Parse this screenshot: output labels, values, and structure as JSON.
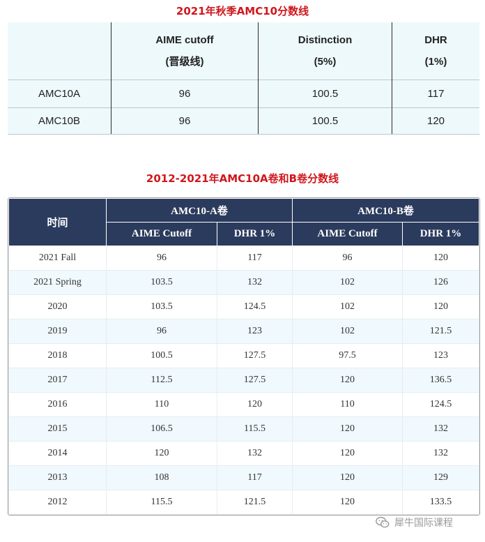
{
  "table1": {
    "title": "2021年秋季AMC10分数线",
    "corner_mark": "_",
    "headers": [
      {
        "line1": "AIME cutoff",
        "line2": "(晋级线)"
      },
      {
        "line1": "Distinction",
        "line2": "(5%)"
      },
      {
        "line1": "DHR",
        "line2": "(1%)"
      }
    ],
    "rows": [
      {
        "label": "AMC10A",
        "cutoff": "96",
        "distinction": "100.5",
        "dhr": "117"
      },
      {
        "label": "AMC10B",
        "cutoff": "96",
        "distinction": "100.5",
        "dhr": "120"
      }
    ]
  },
  "table2": {
    "title": "2012-2021年AMC10A卷和B卷分数线",
    "header_time": "时间",
    "group_a": "AMC10-A卷",
    "group_b": "AMC10-B卷",
    "sub_cutoff_a": "AIME Cutoff",
    "sub_dhr_a": "DHR 1%",
    "sub_cutoff_b": "AIME Cutoff",
    "sub_dhr_b": "DHR 1%",
    "rows": [
      {
        "time": "2021 Fall",
        "a_cutoff": "96",
        "a_dhr": "117",
        "b_cutoff": "96",
        "b_dhr": "120"
      },
      {
        "time": "2021 Spring",
        "a_cutoff": "103.5",
        "a_dhr": "132",
        "b_cutoff": "102",
        "b_dhr": "126"
      },
      {
        "time": "2020",
        "a_cutoff": "103.5",
        "a_dhr": "124.5",
        "b_cutoff": "102",
        "b_dhr": "120"
      },
      {
        "time": "2019",
        "a_cutoff": "96",
        "a_dhr": "123",
        "b_cutoff": "102",
        "b_dhr": "121.5"
      },
      {
        "time": "2018",
        "a_cutoff": "100.5",
        "a_dhr": "127.5",
        "b_cutoff": "97.5",
        "b_dhr": "123"
      },
      {
        "time": "2017",
        "a_cutoff": "112.5",
        "a_dhr": "127.5",
        "b_cutoff": "120",
        "b_dhr": "136.5"
      },
      {
        "time": "2016",
        "a_cutoff": "110",
        "a_dhr": "120",
        "b_cutoff": "110",
        "b_dhr": "124.5"
      },
      {
        "time": "2015",
        "a_cutoff": "106.5",
        "a_dhr": "115.5",
        "b_cutoff": "120",
        "b_dhr": "132"
      },
      {
        "time": "2014",
        "a_cutoff": "120",
        "a_dhr": "132",
        "b_cutoff": "120",
        "b_dhr": "132"
      },
      {
        "time": "2013",
        "a_cutoff": "108",
        "a_dhr": "117",
        "b_cutoff": "120",
        "b_dhr": "129"
      },
      {
        "time": "2012",
        "a_cutoff": "115.5",
        "a_dhr": "121.5",
        "b_cutoff": "120",
        "b_dhr": "133.5"
      }
    ]
  },
  "watermark": {
    "icon": "wechat-icon",
    "text": "犀牛国际课程"
  },
  "colors": {
    "title_red": "#d0171d",
    "header_navy": "#2b3b5d",
    "row_tint": "#f0f9fd",
    "table1_bg": "#eef9fc"
  }
}
